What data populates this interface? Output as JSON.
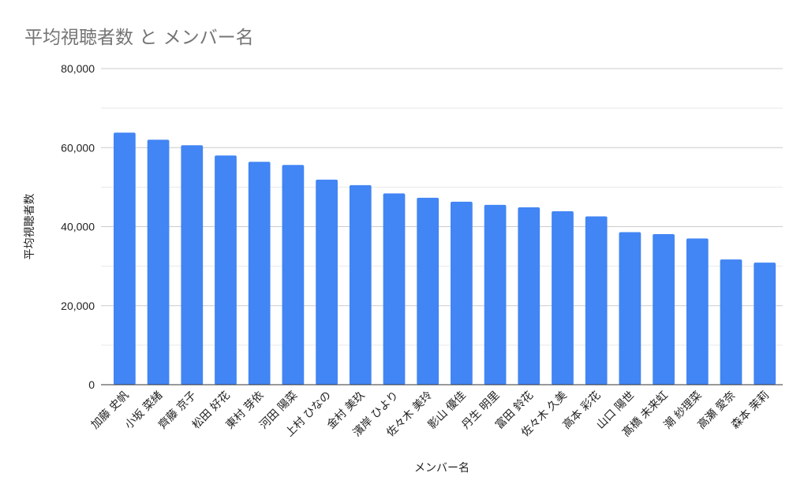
{
  "chart_data": {
    "type": "bar",
    "title": "平均視聴者数 と メンバー名",
    "xlabel": "メンバー名",
    "ylabel": "平均視聴者数",
    "ylim": [
      0,
      80000
    ],
    "yticks": [
      0,
      20000,
      40000,
      60000,
      80000
    ],
    "ytick_labels": [
      "0",
      "20,000",
      "40,000",
      "60,000",
      "80,000"
    ],
    "grid": true,
    "legend": "none",
    "bar_color": "#4285f4",
    "categories": [
      "加藤 史帆",
      "小坂 菜緒",
      "齊藤 京子",
      "松田 好花",
      "東村 芽依",
      "河田 陽菜",
      "上村 ひなの",
      "金村 美玖",
      "濱岸 ひより",
      "佐々木 美玲",
      "影山 優佳",
      "丹生 明里",
      "富田 鈴花",
      "佐々木 久美",
      "高本 彩花",
      "山口 陽世",
      "髙橋 未来虹",
      "潮 紗理菜",
      "高瀬 愛奈",
      "森本 茉莉"
    ],
    "values": [
      63800,
      62000,
      60600,
      58000,
      56400,
      55600,
      51900,
      50500,
      48400,
      47300,
      46300,
      45500,
      44900,
      43900,
      42600,
      38600,
      38100,
      37000,
      31700,
      30900
    ]
  }
}
